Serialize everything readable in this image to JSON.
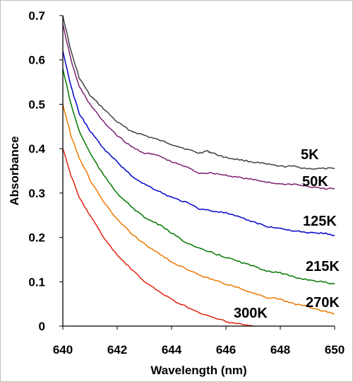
{
  "chart_data": {
    "type": "line",
    "xlabel": "Wavelength (nm)",
    "ylabel": "Absorbance",
    "xlim": [
      640,
      650
    ],
    "ylim": [
      0,
      0.7
    ],
    "x_ticks": [
      640,
      642,
      644,
      646,
      648,
      650
    ],
    "x_tick_labels": [
      "640",
      "642",
      "644",
      "646",
      "648",
      "650"
    ],
    "y_ticks": [
      0,
      0.1,
      0.2,
      0.3,
      0.4,
      0.5,
      0.6,
      0.7
    ],
    "y_tick_labels": [
      "0",
      "0.1",
      "0.2",
      "0.3",
      "0.4",
      "0.5",
      "0.6",
      "0.7"
    ],
    "grid": false,
    "legend": "none",
    "series": [
      {
        "name": "5K",
        "color": "#404040",
        "points": [
          [
            640.0,
            0.7
          ],
          [
            640.3,
            0.62
          ],
          [
            640.6,
            0.56
          ],
          [
            641.0,
            0.52
          ],
          [
            641.5,
            0.49
          ],
          [
            642.0,
            0.46
          ],
          [
            642.5,
            0.44
          ],
          [
            643.0,
            0.43
          ],
          [
            643.5,
            0.42
          ],
          [
            644.0,
            0.41
          ],
          [
            644.5,
            0.4
          ],
          [
            645.0,
            0.39
          ],
          [
            645.3,
            0.395
          ],
          [
            645.5,
            0.39
          ],
          [
            646.0,
            0.38
          ],
          [
            646.5,
            0.375
          ],
          [
            647.0,
            0.37
          ],
          [
            647.5,
            0.365
          ],
          [
            648.0,
            0.36
          ],
          [
            648.5,
            0.36
          ],
          [
            649.0,
            0.355
          ],
          [
            649.5,
            0.355
          ],
          [
            650.0,
            0.355
          ]
        ]
      },
      {
        "name": "50K",
        "color": "#7b1f6e",
        "points": [
          [
            640.0,
            0.68
          ],
          [
            640.3,
            0.6
          ],
          [
            640.6,
            0.54
          ],
          [
            641.0,
            0.5
          ],
          [
            641.5,
            0.46
          ],
          [
            642.0,
            0.43
          ],
          [
            642.5,
            0.405
          ],
          [
            643.0,
            0.39
          ],
          [
            643.5,
            0.385
          ],
          [
            644.0,
            0.37
          ],
          [
            644.5,
            0.36
          ],
          [
            645.0,
            0.345
          ],
          [
            645.5,
            0.345
          ],
          [
            646.0,
            0.34
          ],
          [
            646.5,
            0.335
          ],
          [
            647.0,
            0.33
          ],
          [
            647.5,
            0.325
          ],
          [
            648.0,
            0.32
          ],
          [
            648.5,
            0.32
          ],
          [
            649.0,
            0.315
          ],
          [
            649.5,
            0.31
          ],
          [
            650.0,
            0.31
          ]
        ]
      },
      {
        "name": "125K",
        "color": "#0000cc",
        "points": [
          [
            640.0,
            0.62
          ],
          [
            640.3,
            0.54
          ],
          [
            640.6,
            0.48
          ],
          [
            641.0,
            0.44
          ],
          [
            641.5,
            0.4
          ],
          [
            642.0,
            0.37
          ],
          [
            642.5,
            0.34
          ],
          [
            643.0,
            0.32
          ],
          [
            643.5,
            0.305
          ],
          [
            644.0,
            0.29
          ],
          [
            644.5,
            0.28
          ],
          [
            645.0,
            0.265
          ],
          [
            645.5,
            0.26
          ],
          [
            646.0,
            0.255
          ],
          [
            646.5,
            0.245
          ],
          [
            647.0,
            0.235
          ],
          [
            647.5,
            0.225
          ],
          [
            648.0,
            0.22
          ],
          [
            648.5,
            0.215
          ],
          [
            649.0,
            0.21
          ],
          [
            649.5,
            0.21
          ],
          [
            650.0,
            0.205
          ]
        ]
      },
      {
        "name": "215K",
        "color": "#007800",
        "points": [
          [
            640.0,
            0.58
          ],
          [
            640.3,
            0.5
          ],
          [
            640.6,
            0.44
          ],
          [
            641.0,
            0.39
          ],
          [
            641.5,
            0.34
          ],
          [
            642.0,
            0.3
          ],
          [
            642.5,
            0.27
          ],
          [
            643.0,
            0.245
          ],
          [
            643.5,
            0.23
          ],
          [
            644.0,
            0.21
          ],
          [
            644.5,
            0.19
          ],
          [
            645.0,
            0.175
          ],
          [
            645.5,
            0.165
          ],
          [
            646.0,
            0.155
          ],
          [
            646.5,
            0.145
          ],
          [
            647.0,
            0.135
          ],
          [
            647.5,
            0.125
          ],
          [
            648.0,
            0.12
          ],
          [
            648.5,
            0.11
          ],
          [
            649.0,
            0.105
          ],
          [
            649.5,
            0.1
          ],
          [
            650.0,
            0.095
          ]
        ]
      },
      {
        "name": "270K",
        "color": "#f07800",
        "points": [
          [
            640.0,
            0.5
          ],
          [
            640.3,
            0.43
          ],
          [
            640.6,
            0.38
          ],
          [
            641.0,
            0.33
          ],
          [
            641.5,
            0.28
          ],
          [
            642.0,
            0.24
          ],
          [
            642.5,
            0.21
          ],
          [
            643.0,
            0.185
          ],
          [
            643.5,
            0.165
          ],
          [
            644.0,
            0.145
          ],
          [
            644.5,
            0.13
          ],
          [
            645.0,
            0.115
          ],
          [
            645.5,
            0.105
          ],
          [
            646.0,
            0.095
          ],
          [
            646.5,
            0.085
          ],
          [
            647.0,
            0.075
          ],
          [
            647.5,
            0.065
          ],
          [
            648.0,
            0.06
          ],
          [
            648.5,
            0.05
          ],
          [
            649.0,
            0.045
          ],
          [
            649.5,
            0.035
          ],
          [
            650.0,
            0.028
          ]
        ]
      },
      {
        "name": "300K",
        "color": "#e02010",
        "points": [
          [
            640.0,
            0.4
          ],
          [
            640.3,
            0.34
          ],
          [
            640.6,
            0.29
          ],
          [
            641.0,
            0.25
          ],
          [
            641.5,
            0.2
          ],
          [
            642.0,
            0.16
          ],
          [
            642.5,
            0.13
          ],
          [
            643.0,
            0.1
          ],
          [
            643.5,
            0.08
          ],
          [
            644.0,
            0.06
          ],
          [
            644.5,
            0.045
          ],
          [
            645.0,
            0.03
          ],
          [
            645.5,
            0.02
          ],
          [
            646.0,
            0.01
          ],
          [
            646.5,
            0.005
          ],
          [
            647.0,
            0.0
          ]
        ]
      }
    ]
  }
}
